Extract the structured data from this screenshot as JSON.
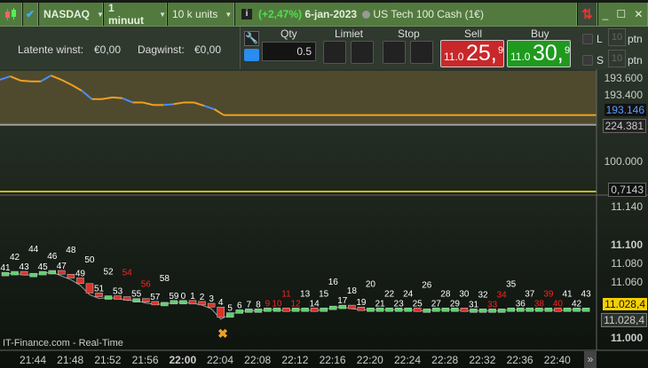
{
  "toolbar": {
    "symbol": "NASDAQ",
    "timeframe": "1 minuut",
    "units": "10 k units",
    "change": "(+2,47%)",
    "date": "6-jan-2023",
    "instrument": "US Tech 100 Cash (1€)"
  },
  "account": {
    "latent_label": "Latente winst:",
    "latent_value": "€0,00",
    "day_label": "Dagwinst:",
    "day_value": "€0,00"
  },
  "order": {
    "qty_label": "Qty",
    "qty_value": "0.5",
    "limit_label": "Limiet",
    "stop_label": "Stop",
    "sell_label": "Sell",
    "buy_label": "Buy",
    "sell_small": "11.0",
    "sell_big": "25,",
    "sell_exp": "9",
    "buy_small": "11.0",
    "buy_big": "30,",
    "buy_exp": "9",
    "l_label": "L",
    "s_label": "S",
    "l_pts": "10",
    "s_pts": "10",
    "pts_unit": "ptn"
  },
  "colors": {
    "sell": "#c8282a",
    "buy": "#1f9a1f",
    "topbar": "#527a3e",
    "change": "#4de04d",
    "indicator_line": "#f0a020",
    "indicator_blue": "#4a8cff",
    "yellow_line": "#ffee00"
  },
  "indicator": {
    "labels": [
      "193.600",
      "193.400"
    ],
    "current": "193.146",
    "values": [
      193.58,
      193.62,
      193.57,
      193.56,
      193.56,
      193.63,
      193.58,
      193.52,
      193.45,
      193.35,
      193.35,
      193.37,
      193.36,
      193.31,
      193.31,
      193.28,
      193.28,
      193.29,
      193.31,
      193.31,
      193.27,
      193.23,
      193.16,
      193.16
    ]
  },
  "indicator2": {
    "line_value": "224.381",
    "label_100": "100.000",
    "osc_value": "0,7143"
  },
  "price_axis": {
    "labels": [
      "11.140",
      "11.100",
      "11.080",
      "11.060",
      "11.000"
    ],
    "bid_label": "11.028,4",
    "ask_label": "11.028,4"
  },
  "price": {
    "minute_labels": [
      "41",
      "42",
      "43",
      "44",
      "45",
      "46",
      "47",
      "48",
      "49",
      "50",
      "51",
      "52",
      "53",
      "54",
      "55",
      "56",
      "57",
      "58",
      "59",
      "0",
      "1",
      "2",
      "3",
      "4",
      "5",
      "6",
      "7",
      "8",
      "9",
      "10",
      "11",
      "12",
      "13",
      "14",
      "15",
      "16",
      "17",
      "18",
      "19",
      "20",
      "21",
      "22",
      "23",
      "24",
      "25",
      "26",
      "27",
      "28",
      "29",
      "30",
      "31",
      "32",
      "33",
      "34",
      "35",
      "36",
      "37",
      "38",
      "39",
      "40",
      "41",
      "42",
      "43"
    ],
    "closes": [
      11068,
      11069,
      11067,
      11067,
      11069,
      11070,
      11066,
      11062,
      11056,
      11046,
      11042,
      11043,
      11042,
      11040,
      11040,
      11037,
      11036,
      11036,
      11038,
      11038,
      11037,
      11035,
      11031,
      11020,
      11025,
      11028,
      11029,
      11029,
      11030,
      11030,
      11029,
      11030,
      11030,
      11029,
      11030,
      11032,
      11033,
      11031,
      11030,
      11030,
      11030,
      11030,
      11030,
      11030,
      11029,
      11029,
      11030,
      11030,
      11030,
      11029,
      11029,
      11029,
      11029,
      11029,
      11030,
      11030,
      11030,
      11030,
      11030,
      11029,
      11030,
      11030,
      11030
    ],
    "red_labels": [
      "54",
      "56",
      "9",
      "10",
      "11",
      "12",
      "33",
      "34",
      "38",
      "39",
      "40"
    ],
    "watermark": "IT-Finance.com - Real-Time"
  },
  "time_axis": {
    "labels": [
      "21:44",
      "21:48",
      "21:52",
      "21:56",
      "22:00",
      "22:04",
      "22:08",
      "22:12",
      "22:16",
      "22:20",
      "22:24",
      "22:28",
      "22:32",
      "22:36",
      "22:40"
    ],
    "scroll_label": "»"
  }
}
